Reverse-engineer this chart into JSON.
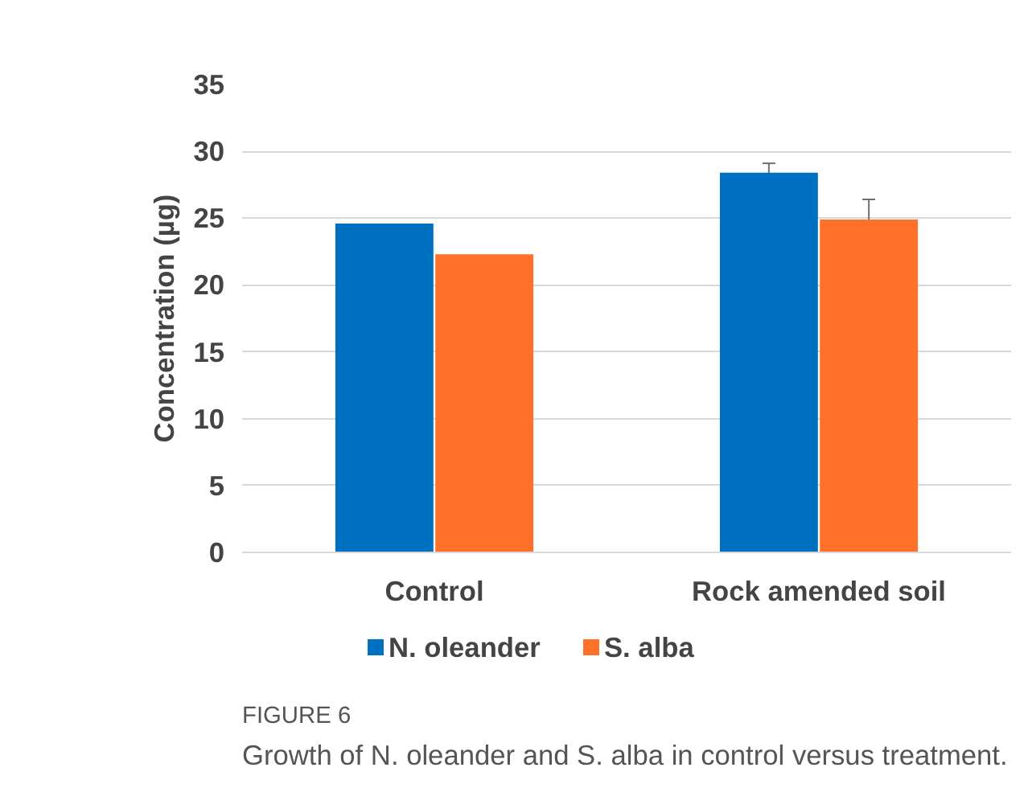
{
  "chart_data": {
    "type": "bar",
    "ylabel": "Concentration (µg)",
    "categories": [
      "Control",
      "Rock amended soil"
    ],
    "series": [
      {
        "name": "N. oleander",
        "color": "#0070c0",
        "values": [
          24.6,
          28.4
        ],
        "errors": [
          null,
          0.7
        ]
      },
      {
        "name": "S. alba",
        "color": "#ff7129",
        "values": [
          22.3,
          24.9
        ],
        "errors": [
          null,
          1.5
        ]
      }
    ],
    "ylim": [
      0,
      35
    ],
    "yticks": [
      0,
      5,
      10,
      15,
      20,
      25,
      30,
      35
    ],
    "grid": "y",
    "legend": "bottom",
    "annotations": [
      "FIGURE 6",
      "Growth of N. oleander and S. alba in control versus treatment."
    ]
  }
}
